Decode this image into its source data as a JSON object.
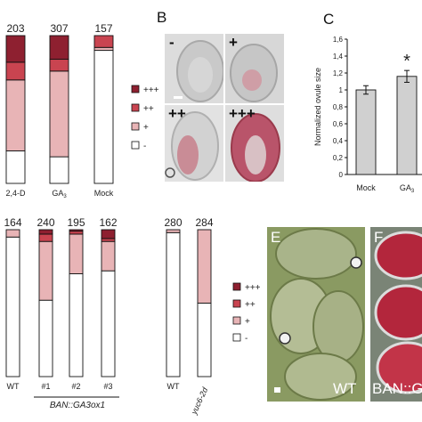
{
  "panel_letters": {
    "b": "B",
    "c": "C",
    "e": "E",
    "f": "F"
  },
  "microscopy": {
    "b_grades": [
      "-",
      "+",
      "++",
      "+++"
    ],
    "e_label": "WT",
    "f_label": "BAN::G"
  },
  "colors": {
    "grade_3": "#8e2030",
    "grade_2": "#c94450",
    "grade_1": "#e8b4b6",
    "grade_0": "#ffffff",
    "bar_gray": "#d0d0d0",
    "stain": "#b3263c"
  },
  "legend": [
    "+++",
    "++",
    "+",
    "-"
  ],
  "chart_data": [
    {
      "type": "bar",
      "stacked": true,
      "categories": [
        "2,4-D",
        "GA",
        "Mock"
      ],
      "category_subscripts": [
        "",
        "3",
        ""
      ],
      "counts": [
        "203",
        "307",
        "157"
      ],
      "series": [
        {
          "name": "-",
          "values": [
            22,
            18,
            90
          ]
        },
        {
          "name": "+",
          "values": [
            48,
            58,
            2
          ]
        },
        {
          "name": "++",
          "values": [
            12,
            8,
            8
          ]
        },
        {
          "name": "+++",
          "values": [
            18,
            16,
            0
          ]
        }
      ],
      "ylim": [
        0,
        100
      ]
    },
    {
      "type": "bar",
      "categories": [
        "Mock",
        "GA"
      ],
      "category_subscripts": [
        "",
        "3"
      ],
      "values": [
        1.0,
        1.16
      ],
      "errors": [
        0.05,
        0.07
      ],
      "ylabel": "Normalized ovule size",
      "ylim": [
        0,
        1.6
      ],
      "yticks": [
        "0",
        "0,2",
        "0,4",
        "0,6",
        "0,8",
        "1",
        "1,2",
        "1,4",
        "1,6"
      ],
      "annotation": "*"
    },
    {
      "type": "bar",
      "stacked": true,
      "categories": [
        "WT",
        "#1",
        "#2",
        "#3",
        "WT",
        "yuc6-2d"
      ],
      "counts": [
        "164",
        "240",
        "195",
        "162",
        "280",
        "284"
      ],
      "group_label": "BAN::GA3ox1",
      "series": [
        {
          "name": "-",
          "values": [
            95,
            52,
            70,
            72,
            98,
            50
          ]
        },
        {
          "name": "+",
          "values": [
            5,
            40,
            27,
            20,
            2,
            50
          ]
        },
        {
          "name": "++",
          "values": [
            0,
            5,
            2,
            2,
            0,
            0
          ]
        },
        {
          "name": "+++",
          "values": [
            0,
            3,
            1,
            6,
            0,
            0
          ]
        }
      ],
      "ylim": [
        0,
        100
      ]
    }
  ]
}
